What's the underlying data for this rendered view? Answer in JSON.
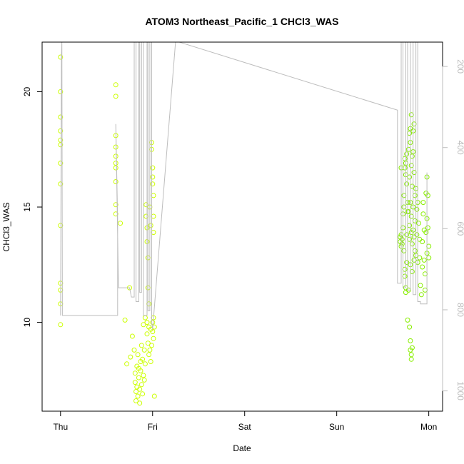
{
  "chart_data": {
    "type": "scatter",
    "title": "ATOM3 Northeast_Pacific_1 CHCl3_WAS",
    "xlabel": "Date",
    "ylabel": "CHCl3_WAS",
    "x_ticks": [
      "Thu",
      "Fri",
      "Sat",
      "Sun",
      "Mon"
    ],
    "xlim_days": [
      -0.2,
      4.15
    ],
    "ylim": [
      6.15,
      22.15
    ],
    "y_ticks": [
      10,
      15,
      20
    ],
    "y2_ticks": [
      200,
      400,
      600,
      800,
      1000
    ],
    "y2lim": [
      1050,
      140
    ],
    "grid": false,
    "colors": {
      "line": "#bdbdbd",
      "early_points": "#ccff00",
      "late_points": "#88ee00",
      "frame": "#000000",
      "right_axis": "#bdbdbd"
    },
    "series": [
      {
        "kind": "points",
        "points": [
          [
            0.0,
            21.5
          ],
          [
            0.0,
            20.0
          ],
          [
            0.0,
            18.9
          ],
          [
            0.0,
            18.3
          ],
          [
            0.0,
            17.9
          ],
          [
            0.0,
            17.7
          ],
          [
            0.0,
            16.9
          ],
          [
            0.0,
            16.0
          ],
          [
            0.0,
            14.2
          ],
          [
            0.0,
            11.7
          ],
          [
            0.0,
            11.4
          ],
          [
            0.0,
            10.8
          ],
          [
            0.0,
            9.9
          ],
          [
            0.6,
            20.3
          ],
          [
            0.6,
            19.8
          ],
          [
            0.6,
            18.1
          ],
          [
            0.6,
            17.6
          ],
          [
            0.6,
            17.2
          ],
          [
            0.6,
            16.9
          ],
          [
            0.6,
            16.7
          ],
          [
            0.6,
            16.1
          ],
          [
            0.6,
            15.1
          ],
          [
            0.6,
            14.7
          ],
          [
            0.65,
            14.3
          ],
          [
            0.7,
            10.1
          ],
          [
            0.72,
            8.2
          ],
          [
            0.75,
            11.5
          ],
          [
            0.76,
            8.5
          ],
          [
            0.78,
            9.4
          ],
          [
            0.8,
            8.8
          ],
          [
            0.81,
            7.8
          ],
          [
            0.81,
            7.4
          ],
          [
            0.82,
            7.0
          ],
          [
            0.82,
            6.6
          ],
          [
            0.83,
            8.1
          ],
          [
            0.83,
            7.2
          ],
          [
            0.84,
            8.6
          ],
          [
            0.84,
            6.8
          ],
          [
            0.85,
            7.6
          ],
          [
            0.85,
            8.0
          ],
          [
            0.86,
            7.1
          ],
          [
            0.86,
            6.5
          ],
          [
            0.87,
            7.9
          ],
          [
            0.87,
            8.3
          ],
          [
            0.88,
            9.0
          ],
          [
            0.88,
            7.3
          ],
          [
            0.89,
            8.4
          ],
          [
            0.89,
            6.9
          ],
          [
            0.9,
            7.7
          ],
          [
            0.9,
            9.9
          ],
          [
            0.91,
            8.8
          ],
          [
            0.91,
            7.5
          ],
          [
            0.92,
            10.2
          ],
          [
            0.92,
            8.2
          ],
          [
            0.93,
            15.1
          ],
          [
            0.93,
            14.6
          ],
          [
            0.94,
            14.1
          ],
          [
            0.94,
            13.5
          ],
          [
            0.95,
            12.8
          ],
          [
            0.95,
            11.5
          ],
          [
            0.96,
            10.8
          ],
          [
            0.96,
            9.8
          ],
          [
            0.97,
            15.0
          ],
          [
            0.98,
            14.2
          ],
          [
            0.94,
            10.0
          ],
          [
            0.94,
            9.5
          ],
          [
            0.95,
            9.1
          ],
          [
            0.96,
            8.6
          ],
          [
            0.97,
            8.8
          ],
          [
            0.98,
            8.3
          ],
          [
            0.98,
            9.7
          ],
          [
            0.99,
            9.0
          ],
          [
            0.99,
            17.8
          ],
          [
            0.99,
            17.5
          ],
          [
            1.0,
            16.7
          ],
          [
            1.0,
            16.3
          ],
          [
            1.0,
            16.0
          ],
          [
            1.01,
            15.5
          ],
          [
            1.01,
            14.6
          ],
          [
            1.01,
            13.9
          ],
          [
            1.0,
            10.0
          ],
          [
            1.0,
            9.6
          ],
          [
            1.01,
            10.2
          ],
          [
            1.01,
            9.3
          ],
          [
            1.02,
            9.8
          ],
          [
            1.02,
            6.8
          ]
        ]
      },
      {
        "kind": "points",
        "points": [
          [
            3.69,
            13.7
          ],
          [
            3.69,
            13.5
          ],
          [
            3.7,
            13.8
          ],
          [
            3.7,
            13.3
          ],
          [
            3.7,
            16.7
          ],
          [
            3.71,
            13.6
          ],
          [
            3.71,
            13.4
          ],
          [
            3.72,
            14.7
          ],
          [
            3.72,
            14.1
          ],
          [
            3.73,
            15.5
          ],
          [
            3.73,
            15.0
          ],
          [
            3.73,
            13.1
          ],
          [
            3.74,
            12.3
          ],
          [
            3.74,
            12.0
          ],
          [
            3.75,
            11.5
          ],
          [
            3.75,
            11.3
          ],
          [
            3.76,
            12.6
          ],
          [
            3.76,
            13.8
          ],
          [
            3.74,
            17.1
          ],
          [
            3.74,
            16.7
          ],
          [
            3.75,
            16.4
          ],
          [
            3.75,
            16.9
          ],
          [
            3.76,
            17.3
          ],
          [
            3.76,
            16.0
          ],
          [
            3.77,
            15.2
          ],
          [
            3.77,
            14.8
          ],
          [
            3.77,
            10.1
          ],
          [
            3.78,
            11.4
          ],
          [
            3.79,
            9.8
          ],
          [
            3.8,
            9.2
          ],
          [
            3.8,
            8.8
          ],
          [
            3.81,
            8.6
          ],
          [
            3.81,
            8.4
          ],
          [
            3.82,
            8.9
          ],
          [
            3.78,
            17.5
          ],
          [
            3.79,
            18.2
          ],
          [
            3.79,
            16.3
          ],
          [
            3.8,
            17.8
          ],
          [
            3.8,
            18.4
          ],
          [
            3.81,
            19.0
          ],
          [
            3.81,
            16.8
          ],
          [
            3.82,
            17.2
          ],
          [
            3.82,
            15.9
          ],
          [
            3.83,
            18.3
          ],
          [
            3.83,
            17.4
          ],
          [
            3.84,
            18.6
          ],
          [
            3.84,
            16.5
          ],
          [
            3.85,
            15.5
          ],
          [
            3.78,
            14.8
          ],
          [
            3.79,
            14.2
          ],
          [
            3.79,
            13.6
          ],
          [
            3.8,
            15.2
          ],
          [
            3.8,
            12.5
          ],
          [
            3.81,
            13.9
          ],
          [
            3.81,
            14.6
          ],
          [
            3.82,
            13.4
          ],
          [
            3.82,
            12.2
          ],
          [
            3.83,
            14.0
          ],
          [
            3.83,
            15.0
          ],
          [
            3.84,
            13.7
          ],
          [
            3.84,
            12.7
          ],
          [
            3.85,
            14.4
          ],
          [
            3.85,
            13.1
          ],
          [
            3.86,
            15.8
          ],
          [
            3.86,
            12.9
          ],
          [
            3.87,
            14.9
          ],
          [
            3.87,
            13.8
          ],
          [
            3.88,
            12.6
          ],
          [
            3.88,
            15.2
          ],
          [
            3.89,
            14.3
          ],
          [
            3.9,
            13.6
          ],
          [
            3.9,
            12.8
          ],
          [
            3.91,
            11.6
          ],
          [
            3.92,
            11.2
          ],
          [
            3.93,
            12.4
          ],
          [
            3.93,
            13.5
          ],
          [
            3.94,
            14.7
          ],
          [
            3.94,
            15.2
          ],
          [
            3.95,
            14.0
          ],
          [
            3.95,
            12.7
          ],
          [
            3.96,
            12.1
          ],
          [
            3.97,
            13.9
          ],
          [
            3.97,
            15.6
          ],
          [
            3.98,
            14.5
          ],
          [
            3.98,
            13.0
          ],
          [
            3.99,
            15.5
          ],
          [
            3.99,
            14.1
          ],
          [
            4.0,
            13.3
          ],
          [
            4.0,
            12.8
          ],
          [
            3.96,
            11.4
          ],
          [
            3.98,
            16.3
          ]
        ]
      },
      {
        "kind": "line",
        "points": [
          [
            0.0,
            10.3
          ],
          [
            0.01,
            21.6
          ],
          [
            0.015,
            22.2
          ],
          [
            0.02,
            10.3
          ],
          [
            0.62,
            10.3
          ],
          [
            0.62,
            14.5
          ],
          [
            0.6,
            18.6
          ],
          [
            0.63,
            11.5
          ],
          [
            0.75,
            11.5
          ],
          [
            0.77,
            11.1
          ],
          [
            0.8,
            11.1
          ],
          [
            0.8,
            22.2
          ],
          [
            0.82,
            22.2
          ],
          [
            0.82,
            10.9
          ],
          [
            0.85,
            10.9
          ],
          [
            0.85,
            22.2
          ],
          [
            0.86,
            22.2
          ],
          [
            0.86,
            11.3
          ],
          [
            0.88,
            11.3
          ],
          [
            0.88,
            22.2
          ],
          [
            0.9,
            22.2
          ],
          [
            0.9,
            10.3
          ],
          [
            0.94,
            10.3
          ],
          [
            0.94,
            22.2
          ],
          [
            0.95,
            22.2
          ],
          [
            0.95,
            10.5
          ],
          [
            0.97,
            10.5
          ],
          [
            0.97,
            22.2
          ],
          [
            0.99,
            22.2
          ],
          [
            0.99,
            10.0
          ],
          [
            1.0,
            9.7
          ],
          [
            1.25,
            22.2
          ],
          [
            3.66,
            19.2
          ],
          [
            3.66,
            11.7
          ],
          [
            3.7,
            11.7
          ],
          [
            3.7,
            22.2
          ],
          [
            3.72,
            22.2
          ],
          [
            3.72,
            11.5
          ],
          [
            3.75,
            11.5
          ],
          [
            3.75,
            22.2
          ],
          [
            3.77,
            22.2
          ],
          [
            3.77,
            11.4
          ],
          [
            3.8,
            11.4
          ],
          [
            3.8,
            22.2
          ],
          [
            3.83,
            22.2
          ],
          [
            3.83,
            11.2
          ],
          [
            3.86,
            11.2
          ],
          [
            3.86,
            22.2
          ],
          [
            3.88,
            22.2
          ],
          [
            3.88,
            10.9
          ],
          [
            3.91,
            10.9
          ],
          [
            3.91,
            10.8
          ],
          [
            3.98,
            10.8
          ],
          [
            3.98,
            16.5
          ]
        ]
      }
    ]
  }
}
